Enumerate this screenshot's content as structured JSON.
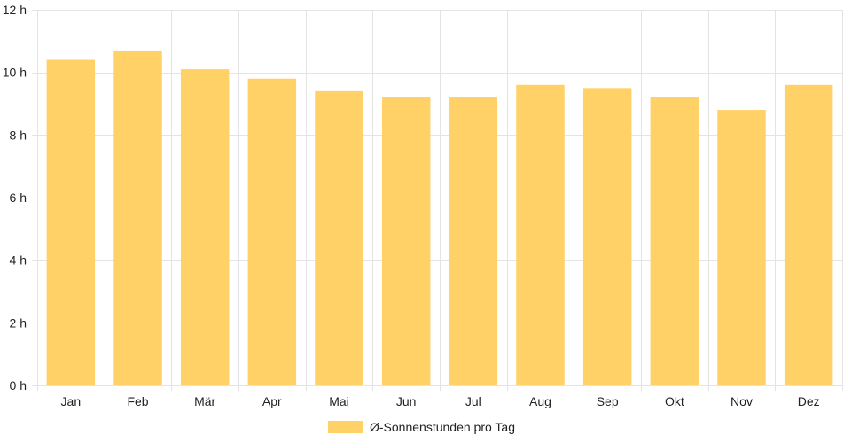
{
  "chart_data": {
    "type": "bar",
    "categories": [
      "Jan",
      "Feb",
      "Mär",
      "Apr",
      "Mai",
      "Jun",
      "Jul",
      "Aug",
      "Sep",
      "Okt",
      "Nov",
      "Dez"
    ],
    "series": [
      {
        "name": "Ø-Sonnenstunden pro Tag",
        "values": [
          10.4,
          10.7,
          10.1,
          9.8,
          9.4,
          9.2,
          9.2,
          9.6,
          9.5,
          9.2,
          8.8,
          9.6
        ],
        "color": "#ffd166"
      }
    ],
    "ylim": [
      0,
      12
    ],
    "y_ticks": [
      {
        "value": 0,
        "label": "0 h"
      },
      {
        "value": 2,
        "label": "2 h"
      },
      {
        "value": 4,
        "label": "4 h"
      },
      {
        "value": 6,
        "label": "6 h"
      },
      {
        "value": 8,
        "label": "8 h"
      },
      {
        "value": 10,
        "label": "10 h"
      },
      {
        "value": 12,
        "label": "12 h"
      }
    ],
    "grid": true,
    "legend_position": "bottom-center",
    "grid_color": "#e4e4e4"
  }
}
